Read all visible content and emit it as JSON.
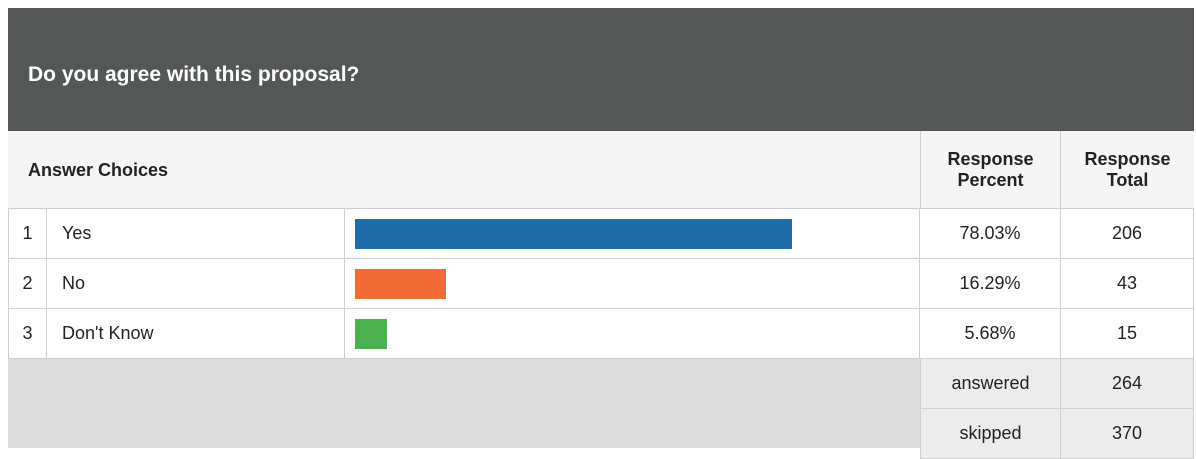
{
  "title": "Do you agree with this proposal?",
  "header": {
    "choices": "Answer Choices",
    "percent": "Response Percent",
    "total": "Response Total"
  },
  "rows": [
    {
      "number": 1,
      "label": "Yes",
      "percent": {
        "value": 78.03,
        "label": "78.03%"
      },
      "total": 206,
      "color": "#1f6eaa"
    },
    {
      "number": 2,
      "label": "No",
      "percent": {
        "value": 16.29,
        "label": "16.29%"
      },
      "total": 43,
      "color": "#f26a35"
    },
    {
      "number": 3,
      "label": "Don't Know",
      "percent": {
        "value": 5.68,
        "label": "5.68%"
      },
      "total": 15,
      "color": "#4cb050"
    }
  ],
  "summary": [
    {
      "label": "answered",
      "total": 264
    },
    {
      "label": "skipped",
      "total": 370
    }
  ]
}
